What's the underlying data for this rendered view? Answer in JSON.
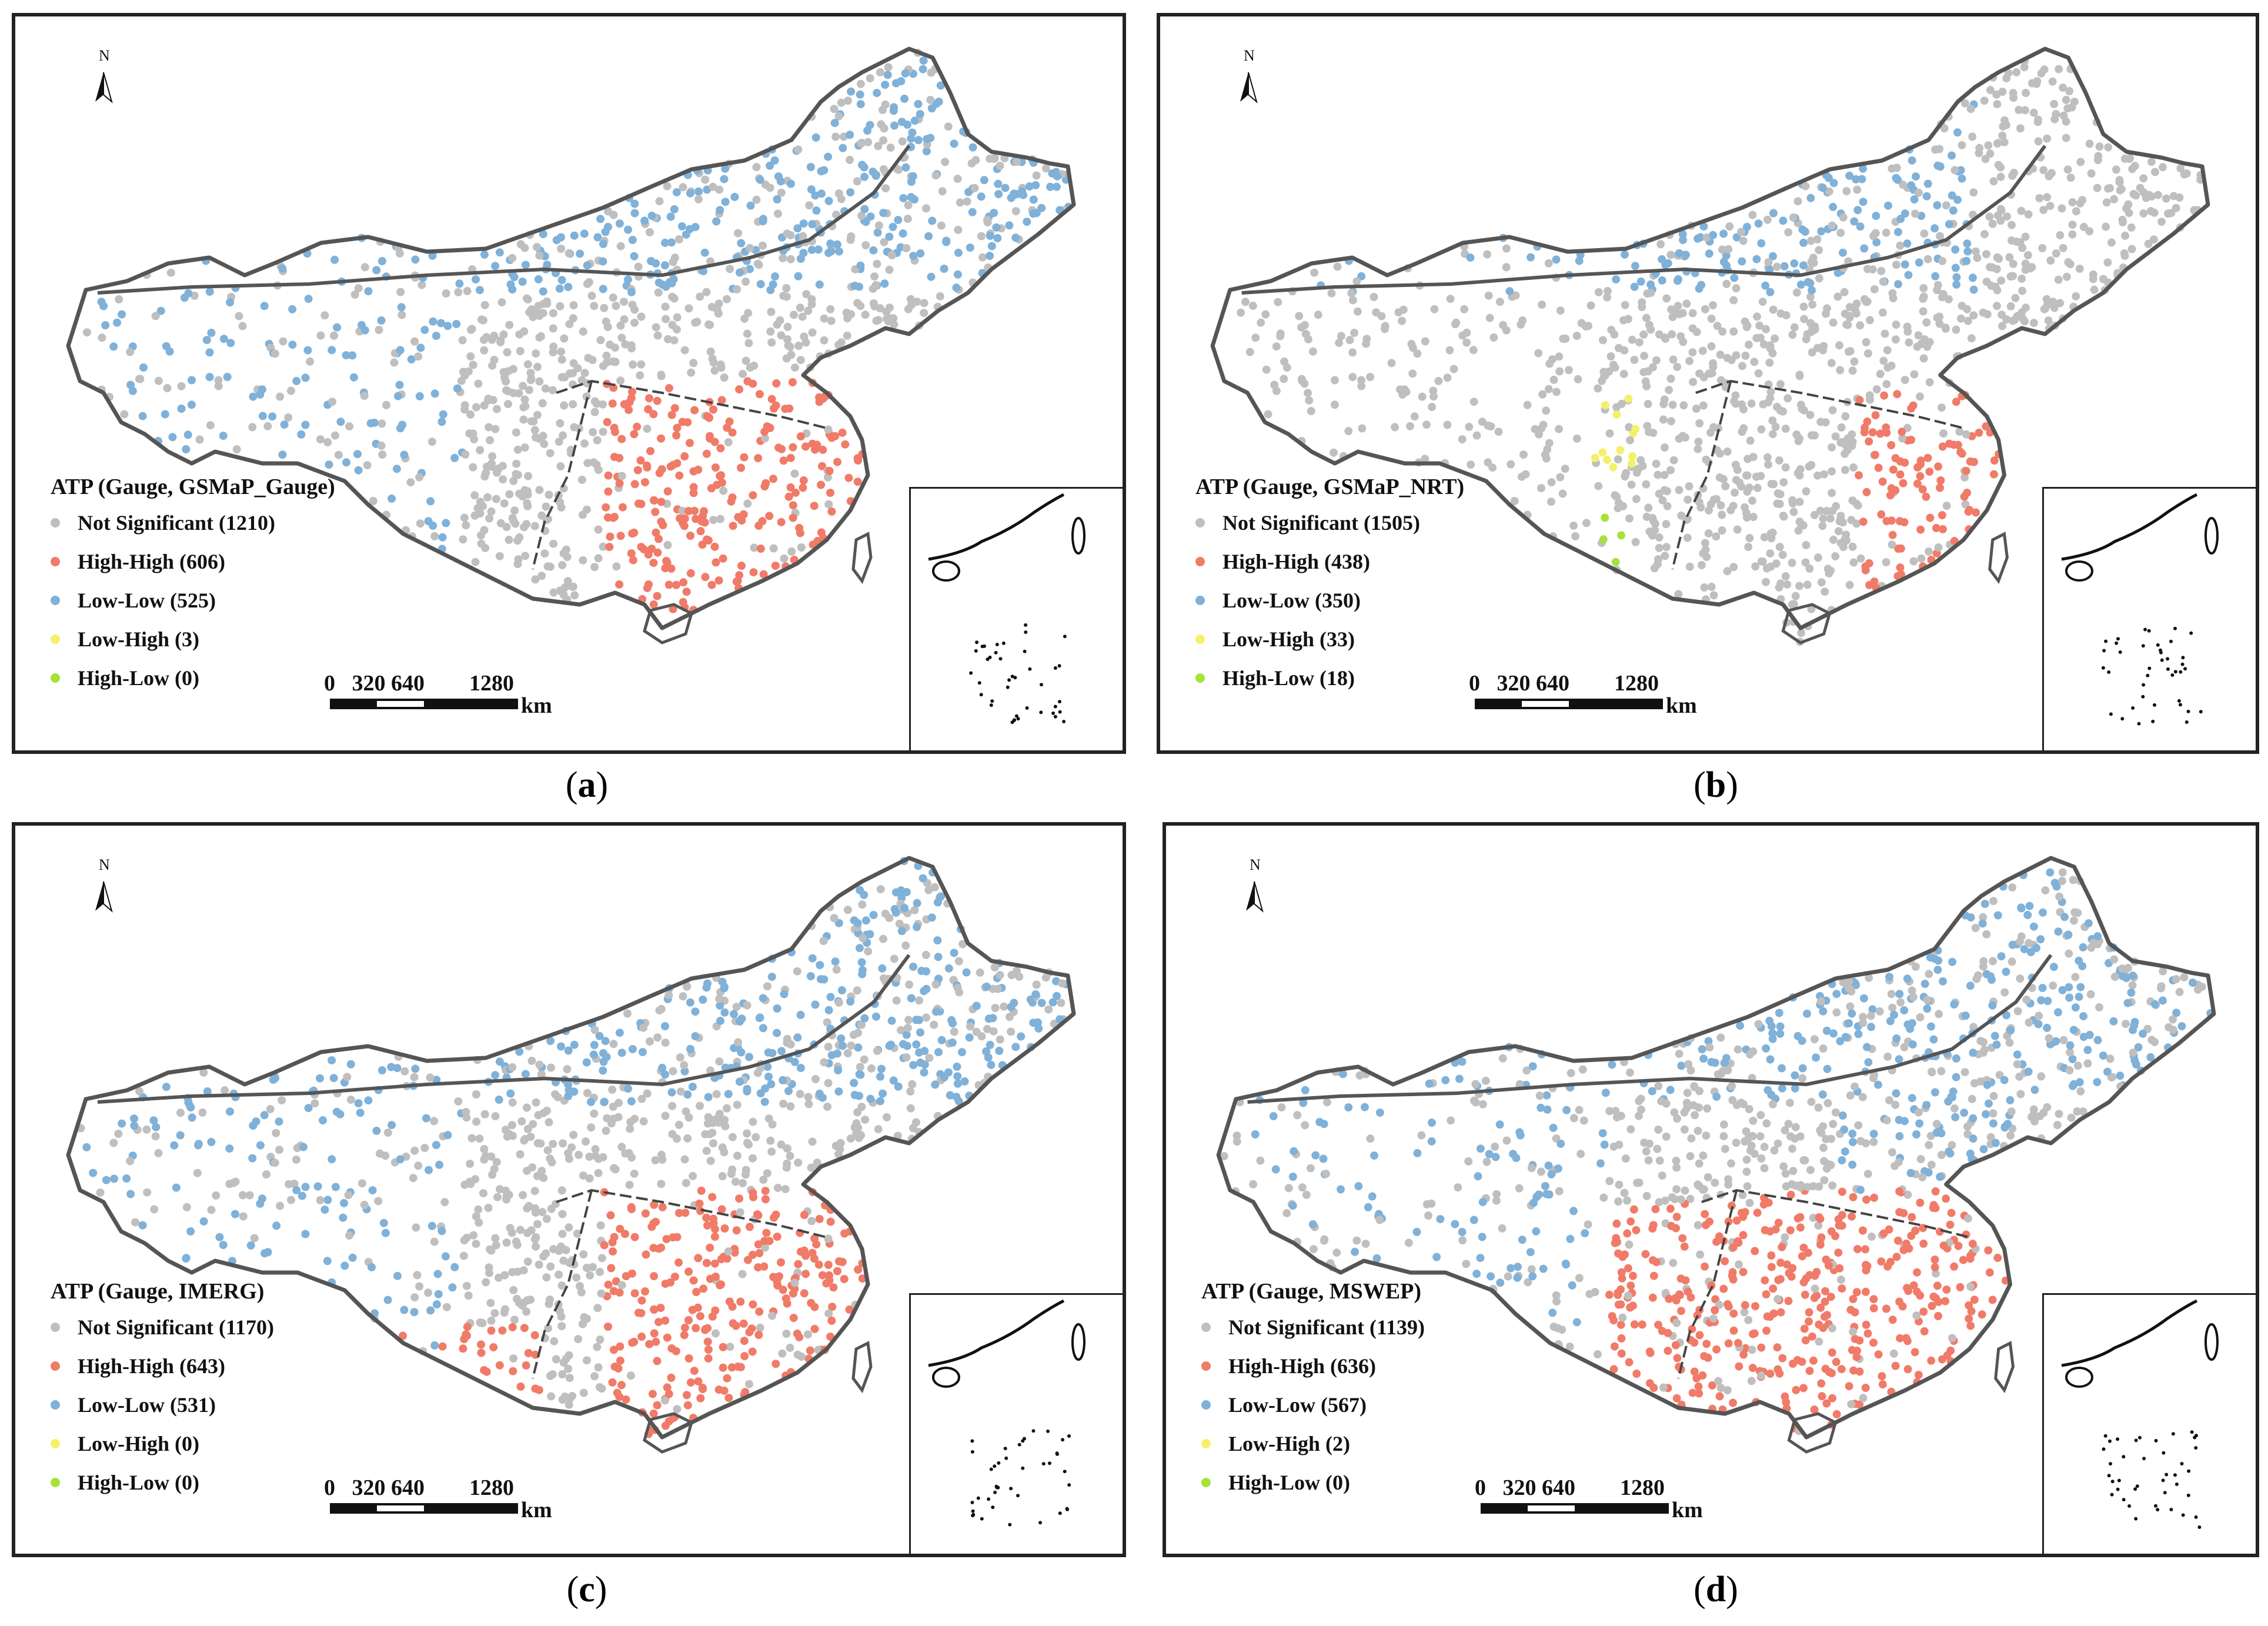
{
  "panels": [
    {
      "caption_label": "a",
      "legend_title": "ATP (Gauge, GSMaP_Gauge)",
      "legend": [
        {
          "label": "Not Significant (1210)",
          "category": "not-significant",
          "count": 1210,
          "color": "#bfbfbf"
        },
        {
          "label": "High-High (606)",
          "category": "high-high",
          "count": 606,
          "color": "#f07b68"
        },
        {
          "label": "Low-Low (525)",
          "category": "low-low",
          "count": 525,
          "color": "#7fb1d9"
        },
        {
          "label": "Low-High (3)",
          "category": "low-high",
          "count": 3,
          "color": "#f5f06a"
        },
        {
          "label": "High-Low (0)",
          "category": "high-low",
          "count": 0,
          "color": "#a6e23a"
        }
      ]
    },
    {
      "caption_label": "b",
      "legend_title": "ATP (Gauge, GSMaP_NRT)",
      "legend": [
        {
          "label": "Not Significant (1505)",
          "category": "not-significant",
          "count": 1505,
          "color": "#bfbfbf"
        },
        {
          "label": "High-High (438)",
          "category": "high-high",
          "count": 438,
          "color": "#f07b68"
        },
        {
          "label": "Low-Low (350)",
          "category": "low-low",
          "count": 350,
          "color": "#7fb1d9"
        },
        {
          "label": "Low-High (33)",
          "category": "low-high",
          "count": 33,
          "color": "#f5f06a"
        },
        {
          "label": "High-Low (18)",
          "category": "high-low",
          "count": 18,
          "color": "#a6e23a"
        }
      ]
    },
    {
      "caption_label": "c",
      "legend_title": "ATP (Gauge, IMERG)",
      "legend": [
        {
          "label": "Not Significant (1170)",
          "category": "not-significant",
          "count": 1170,
          "color": "#bfbfbf"
        },
        {
          "label": "High-High (643)",
          "category": "high-high",
          "count": 643,
          "color": "#f07b68"
        },
        {
          "label": "Low-Low (531)",
          "category": "low-low",
          "count": 531,
          "color": "#7fb1d9"
        },
        {
          "label": "Low-High (0)",
          "category": "low-high",
          "count": 0,
          "color": "#f5f06a"
        },
        {
          "label": "High-Low (0)",
          "category": "high-low",
          "count": 0,
          "color": "#a6e23a"
        }
      ]
    },
    {
      "caption_label": "d",
      "legend_title": "ATP (Gauge, MSWEP)",
      "legend": [
        {
          "label": "Not Significant (1139)",
          "category": "not-significant",
          "count": 1139,
          "color": "#bfbfbf"
        },
        {
          "label": "High-High (636)",
          "category": "high-high",
          "count": 636,
          "color": "#f07b68"
        },
        {
          "label": "Low-Low (567)",
          "category": "low-low",
          "count": 567,
          "color": "#7fb1d9"
        },
        {
          "label": "Low-High (2)",
          "category": "low-high",
          "count": 2,
          "color": "#f5f06a"
        },
        {
          "label": "High-Low (0)",
          "category": "high-low",
          "count": 0,
          "color": "#a6e23a"
        }
      ]
    }
  ],
  "scale_bar": {
    "ticks": "0   320 640        1280",
    "unit": "km"
  },
  "north_arrow": {
    "label": "N"
  },
  "colors": {
    "boundary": "#555555",
    "frame": "#222222"
  }
}
